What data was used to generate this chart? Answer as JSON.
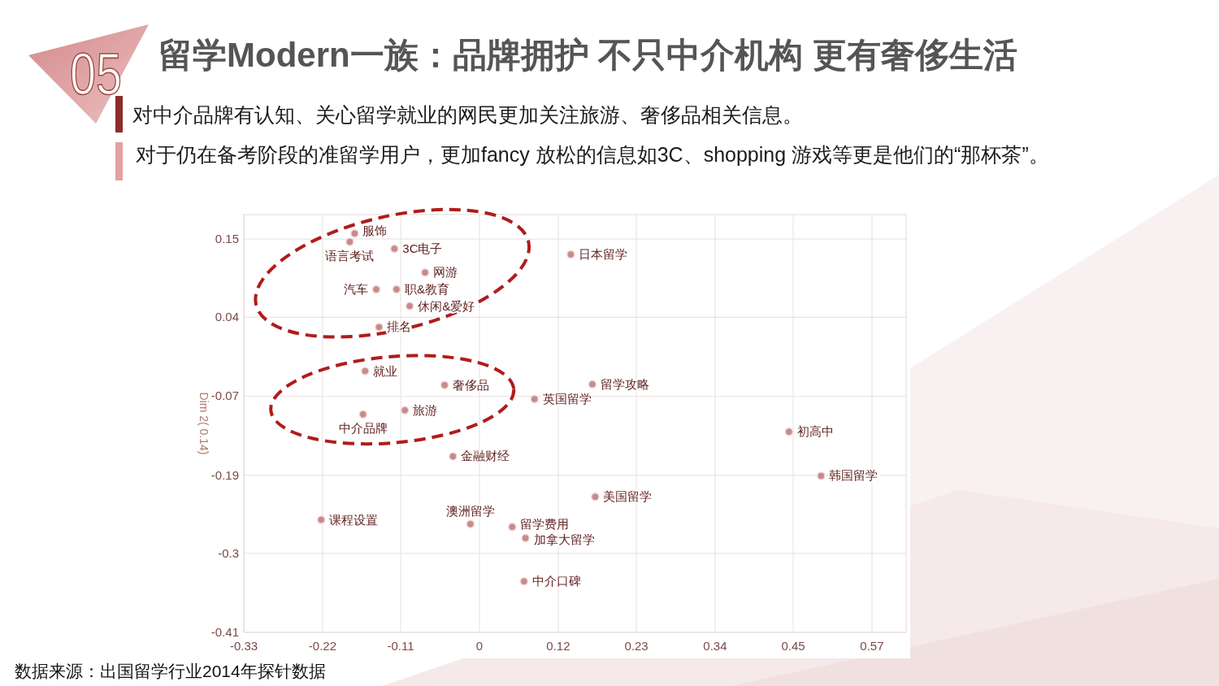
{
  "chart_data": {
    "type": "scatter",
    "title": "留学Modern一族：品牌拥护 不只中介机构 更有奢侈生活",
    "subtitle": "对中介品牌有认知、关心留学就业的网民更加关注旅游、奢侈品相关信息。",
    "ylabel": "Dim 2( 0.14)",
    "annotations": [
      "05",
      "对于仍在备考阶段的准留学用户，更加fancy 放松的信息如3C、shopping 游戏等更是他们的“那杯茶”。",
      "数据来源：出国留学行业2014年探针数据"
    ],
    "xlim": [
      -0.334,
      0.616
    ],
    "ylim": [
      -0.412,
      0.186
    ],
    "xticks": [
      {
        "value": -0.334,
        "label": "-0.33"
      },
      {
        "value": -0.221,
        "label": "-0.22"
      },
      {
        "value": -0.109,
        "label": "-0.11"
      },
      {
        "value": 0.004,
        "label": "0"
      },
      {
        "value": 0.117,
        "label": "0.12"
      },
      {
        "value": 0.229,
        "label": "0.23"
      },
      {
        "value": 0.342,
        "label": "0.34"
      },
      {
        "value": 0.454,
        "label": "0.45"
      },
      {
        "value": 0.567,
        "label": "0.57"
      }
    ],
    "yticks": [
      {
        "value": 0.151,
        "label": "0.15"
      },
      {
        "value": 0.039,
        "label": "0.04"
      },
      {
        "value": -0.074,
        "label": "-0.07"
      },
      {
        "value": -0.187,
        "label": "-0.19"
      },
      {
        "value": -0.299,
        "label": "-0.3"
      },
      {
        "value": -0.412,
        "label": "-0.41"
      }
    ],
    "grid": true,
    "marker": "circle",
    "series": [
      {
        "name": "服饰",
        "color": "#c98a8a",
        "x": [
          -0.175
        ],
        "values": [
          0.159
        ]
      },
      {
        "name": "语言考试",
        "color": "#c98a8a",
        "x": [
          -0.182
        ],
        "values": [
          0.147
        ]
      },
      {
        "name": "3C电子",
        "color": "#c98a8a",
        "x": [
          -0.118
        ],
        "values": [
          0.137
        ]
      },
      {
        "name": "日本留学",
        "color": "#c98a8a",
        "x": [
          0.135
        ],
        "values": [
          0.129
        ]
      },
      {
        "name": "网游",
        "color": "#c98a8a",
        "x": [
          -0.074
        ],
        "values": [
          0.103
        ]
      },
      {
        "name": "汽车",
        "color": "#c98a8a",
        "x": [
          -0.144
        ],
        "values": [
          0.079
        ]
      },
      {
        "name": "职&教育",
        "color": "#c98a8a",
        "x": [
          -0.115
        ],
        "values": [
          0.079
        ]
      },
      {
        "name": "休闲&爱好",
        "color": "#c98a8a",
        "x": [
          -0.096
        ],
        "values": [
          0.055
        ]
      },
      {
        "name": "排名",
        "color": "#c98a8a",
        "x": [
          -0.14
        ],
        "values": [
          0.025
        ]
      },
      {
        "name": "就业",
        "color": "#c98a8a",
        "x": [
          -0.16
        ],
        "values": [
          -0.038
        ]
      },
      {
        "name": "留学攻略",
        "color": "#c98a8a",
        "x": [
          0.166
        ],
        "values": [
          -0.057
        ]
      },
      {
        "name": "奢侈品",
        "color": "#c98a8a",
        "x": [
          -0.046
        ],
        "values": [
          -0.058
        ]
      },
      {
        "name": "英国留学",
        "color": "#c98a8a",
        "x": [
          0.083
        ],
        "values": [
          -0.078
        ]
      },
      {
        "name": "旅游",
        "color": "#c98a8a",
        "x": [
          -0.103
        ],
        "values": [
          -0.094
        ]
      },
      {
        "name": "中介品牌",
        "color": "#c98a8a",
        "x": [
          -0.163
        ],
        "values": [
          -0.1
        ]
      },
      {
        "name": "初高中",
        "color": "#c98a8a",
        "x": [
          0.448
        ],
        "values": [
          -0.125
        ]
      },
      {
        "name": "金融财经",
        "color": "#c98a8a",
        "x": [
          -0.034
        ],
        "values": [
          -0.16
        ]
      },
      {
        "name": "韩国留学",
        "color": "#c98a8a",
        "x": [
          0.494
        ],
        "values": [
          -0.188
        ]
      },
      {
        "name": "美国留学",
        "color": "#c98a8a",
        "x": [
          0.17
        ],
        "values": [
          -0.218
        ]
      },
      {
        "name": "课程设置",
        "color": "#c98a8a",
        "x": [
          -0.223
        ],
        "values": [
          -0.251
        ]
      },
      {
        "name": "澳洲留学",
        "color": "#c98a8a",
        "x": [
          -0.009
        ],
        "values": [
          -0.257
        ]
      },
      {
        "name": "留学费用",
        "color": "#c98a8a",
        "x": [
          0.051
        ],
        "values": [
          -0.261
        ]
      },
      {
        "name": "加拿大留学",
        "color": "#c98a8a",
        "x": [
          0.07
        ],
        "values": [
          -0.277
        ]
      },
      {
        "name": "中介口碑",
        "color": "#c98a8a",
        "x": [
          0.068
        ],
        "values": [
          -0.339
        ]
      }
    ]
  }
}
